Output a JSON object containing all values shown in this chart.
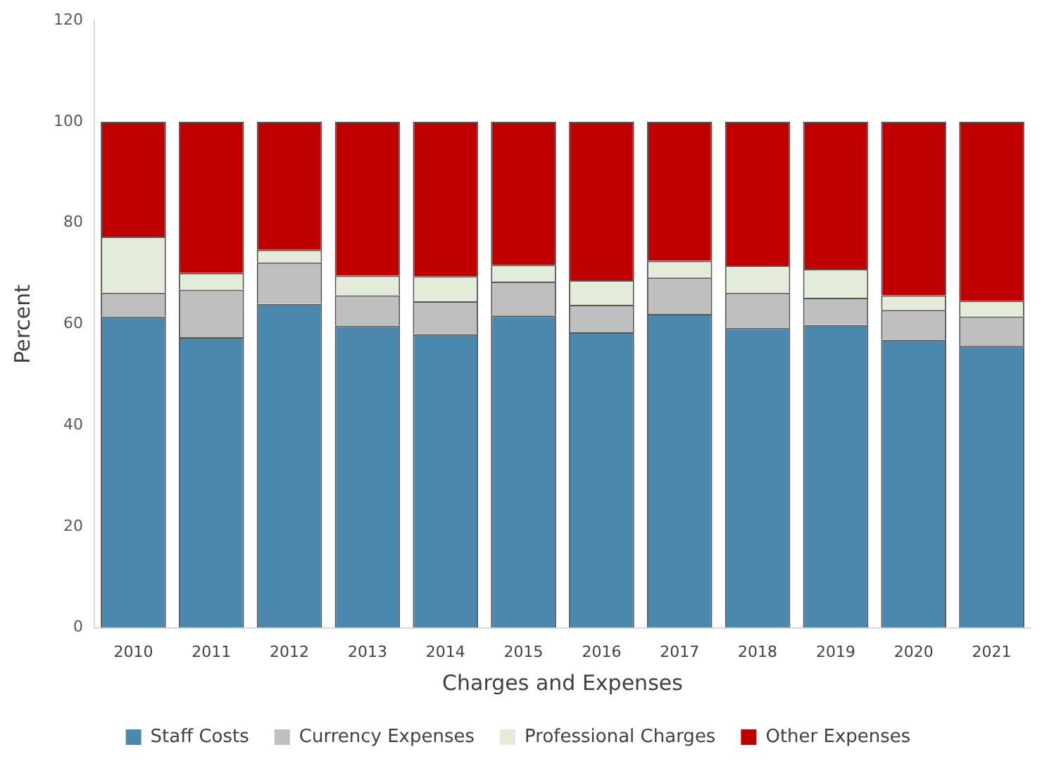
{
  "chart_data": {
    "type": "bar",
    "stacked": true,
    "xlabel": "Charges and Expenses",
    "ylabel": "Percent",
    "categories": [
      "2010",
      "2011",
      "2012",
      "2013",
      "2014",
      "2015",
      "2016",
      "2017",
      "2018",
      "2019",
      "2020",
      "2021"
    ],
    "series": [
      {
        "name": "Staff Costs",
        "color": "#4a88ae",
        "values": [
          61.5,
          57.4,
          64,
          59.7,
          58,
          61.7,
          58.4,
          62,
          59.3,
          59.8,
          56.9,
          55.7
        ]
      },
      {
        "name": "Currency Expenses",
        "color": "#c0bfc0",
        "values": [
          4.7,
          9.4,
          8.2,
          6,
          6.5,
          6.7,
          5.4,
          7.2,
          6.9,
          5.4,
          5.9,
          5.8
        ]
      },
      {
        "name": "Professional Charges",
        "color": "#e2ecd9",
        "values": [
          11.1,
          3.3,
          2.5,
          3.9,
          5,
          3.3,
          4.9,
          3.3,
          5.4,
          5.7,
          2.9,
          3.1
        ]
      },
      {
        "name": "Other Expenses",
        "color": "#c00000",
        "values": [
          22.7,
          29.9,
          25.3,
          30.4,
          30.5,
          28.3,
          31.3,
          27.5,
          28.4,
          29.1,
          34.3,
          35.4
        ]
      }
    ],
    "ylim": [
      0,
      120
    ],
    "yticks": [
      0,
      20,
      40,
      60,
      80,
      100,
      120
    ],
    "grid": false,
    "legend": "bottom"
  }
}
